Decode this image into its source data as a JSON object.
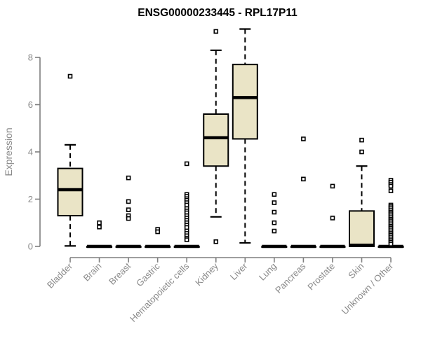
{
  "chart_data": {
    "type": "boxplot",
    "title": "ENSG00000233445 - RPL17P11",
    "ylabel": "Expression",
    "xlabel": "",
    "ylim": [
      0,
      9.3
    ],
    "yticks": [
      0,
      2,
      4,
      6,
      8
    ],
    "grid": false,
    "legend": null,
    "categories": [
      "Bladder",
      "Brain",
      "Breast",
      "Gastric",
      "Hematopoietic cells",
      "Kidney",
      "Liver",
      "Lung",
      "Pancreas",
      "Prostate",
      "Skin",
      "Unknown / Other"
    ],
    "boxes": [
      {
        "category": "Bladder",
        "q1": 1.3,
        "median": 2.4,
        "q3": 3.3,
        "whisker_low": 0.02,
        "whisker_high": 4.3,
        "outliers": [
          7.2
        ]
      },
      {
        "category": "Brain",
        "q1": 0,
        "median": 0,
        "q3": 0,
        "whisker_low": 0,
        "whisker_high": 0,
        "outliers": [
          1.0,
          0.82
        ]
      },
      {
        "category": "Breast",
        "q1": 0,
        "median": 0,
        "q3": 0,
        "whisker_low": 0,
        "whisker_high": 0,
        "outliers": [
          2.9,
          1.9,
          1.55,
          1.3,
          1.18
        ]
      },
      {
        "category": "Gastric",
        "q1": 0,
        "median": 0,
        "q3": 0,
        "whisker_low": 0,
        "whisker_high": 0,
        "outliers": [
          0.72,
          0.62
        ]
      },
      {
        "category": "Hematopoietic cells",
        "q1": 0,
        "median": 0,
        "q3": 0,
        "whisker_low": 0,
        "whisker_high": 0,
        "outliers": [
          3.5,
          2.2,
          2.12,
          2.02,
          1.95,
          1.85,
          1.75,
          1.6,
          1.5,
          1.42,
          1.3,
          1.2,
          1.1,
          1.0,
          0.9,
          0.8,
          0.65,
          0.55,
          0.45,
          0.35,
          0.28
        ]
      },
      {
        "category": "Kidney",
        "q1": 3.4,
        "median": 4.6,
        "q3": 5.6,
        "whisker_low": 1.25,
        "whisker_high": 8.3,
        "outliers": [
          9.1,
          0.2
        ]
      },
      {
        "category": "Liver",
        "q1": 4.55,
        "median": 6.3,
        "q3": 7.7,
        "whisker_low": 0.15,
        "whisker_high": 9.2,
        "outliers": []
      },
      {
        "category": "Lung",
        "q1": 0,
        "median": 0,
        "q3": 0,
        "whisker_low": 0,
        "whisker_high": 0,
        "outliers": [
          2.2,
          1.85,
          1.45,
          1.0,
          0.65
        ]
      },
      {
        "category": "Pancreas",
        "q1": 0,
        "median": 0,
        "q3": 0,
        "whisker_low": 0,
        "whisker_high": 0,
        "outliers": [
          4.55,
          2.85
        ]
      },
      {
        "category": "Prostate",
        "q1": 0,
        "median": 0,
        "q3": 0,
        "whisker_low": 0,
        "whisker_high": 0,
        "outliers": [
          2.55,
          1.2
        ]
      },
      {
        "category": "Skin",
        "q1": 0,
        "median": 0.05,
        "q3": 1.5,
        "whisker_low": 0,
        "whisker_high": 3.4,
        "outliers": [
          4.5,
          4.0
        ]
      },
      {
        "category": "Unknown / Other",
        "q1": 0,
        "median": 0,
        "q3": 0,
        "whisker_low": 0,
        "whisker_high": 0,
        "outliers": [
          2.8,
          2.72,
          2.62,
          2.55,
          2.35,
          1.75,
          1.68,
          1.6,
          1.52,
          1.45,
          1.38,
          1.3,
          1.22,
          1.15,
          1.08,
          1.0,
          0.92,
          0.85,
          0.78,
          0.7,
          0.62,
          0.55,
          0.48,
          0.4,
          0.32,
          0.25,
          0.18,
          0.1
        ]
      }
    ]
  },
  "colors": {
    "background": "#FFFFFF",
    "box_fill": "#EAE4C6",
    "box_border": "#000000",
    "median": "#000000",
    "whisker": "#000000",
    "outlier_stroke": "#000000",
    "outlier_fill": "#FFFFFF",
    "axis_line": "#7F7F7F",
    "tick_label": "#8A8A8A",
    "axis_label": "#8A8A8A",
    "title": "#000000"
  }
}
